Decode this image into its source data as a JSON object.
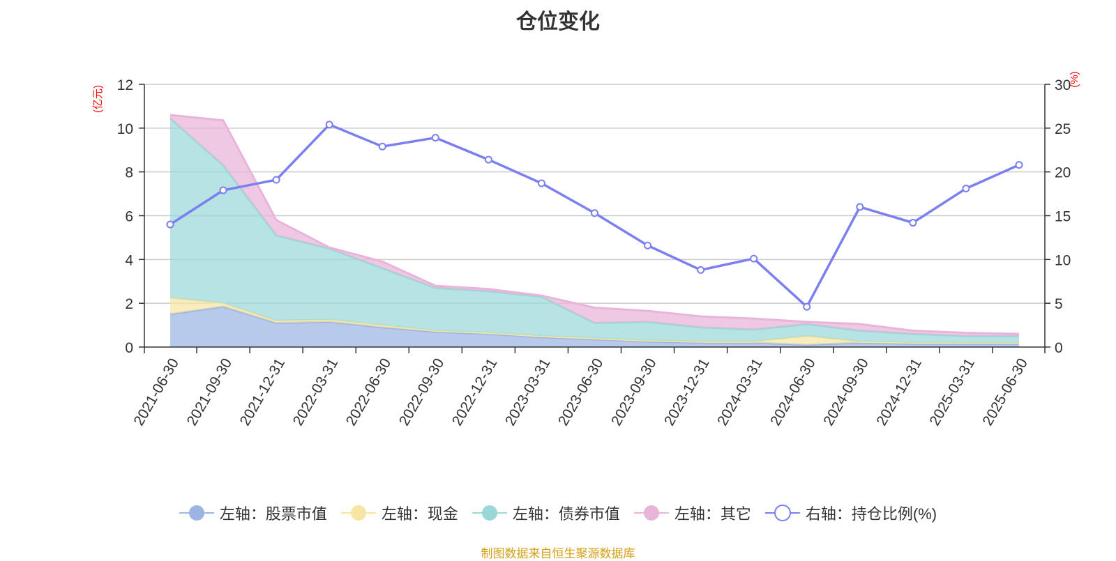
{
  "title": "仓位变化",
  "source_note": "制图数据来自恒生聚源数据库",
  "left_unit": "(亿元)",
  "right_unit": "(%)",
  "chart_data": {
    "type": "area",
    "categories": [
      "2021-06-30",
      "2021-09-30",
      "2021-12-31",
      "2022-03-31",
      "2022-06-30",
      "2022-09-30",
      "2022-12-31",
      "2023-03-31",
      "2023-06-30",
      "2023-09-30",
      "2023-12-31",
      "2024-03-31",
      "2024-06-30",
      "2024-09-30",
      "2024-12-31",
      "2025-03-31",
      "2025-06-30"
    ],
    "left_axis": {
      "ylim": [
        0,
        12
      ],
      "ticks": [
        "0",
        "2",
        "4",
        "6",
        "8",
        "10",
        "12"
      ]
    },
    "right_axis": {
      "ylim": [
        0,
        30
      ],
      "ticks": [
        "0",
        "5",
        "10",
        "15",
        "20",
        "25",
        "30"
      ]
    },
    "stacked": true,
    "grid": true,
    "legend_position": "bottom",
    "series": [
      {
        "name": "左轴：股票市值",
        "axis": "left",
        "color": "#9db5e3",
        "values": [
          1.5,
          1.85,
          1.1,
          1.15,
          0.9,
          0.7,
          0.6,
          0.45,
          0.35,
          0.25,
          0.2,
          0.2,
          0.1,
          0.2,
          0.15,
          0.15,
          0.15
        ]
      },
      {
        "name": "左轴：现金",
        "axis": "left",
        "color": "#f7e5a3",
        "values": [
          0.75,
          0.15,
          0.1,
          0.1,
          0.1,
          0.05,
          0.05,
          0.05,
          0.05,
          0.05,
          0.05,
          0.05,
          0.4,
          0.05,
          0.05,
          0.05,
          0.05
        ]
      },
      {
        "name": "左轴：债券市值",
        "axis": "left",
        "color": "#9ad8d8",
        "values": [
          8.2,
          6.3,
          3.9,
          3.25,
          2.6,
          1.95,
          1.9,
          1.8,
          0.7,
          0.85,
          0.65,
          0.55,
          0.55,
          0.5,
          0.4,
          0.3,
          0.3
        ]
      },
      {
        "name": "左轴：其它",
        "axis": "left",
        "color": "#e9b4da",
        "values": [
          0.15,
          2.05,
          0.7,
          0.05,
          0.3,
          0.1,
          0.1,
          0.05,
          0.7,
          0.5,
          0.5,
          0.5,
          0.1,
          0.3,
          0.15,
          0.15,
          0.1
        ]
      },
      {
        "name": "右轴：持仓比例(%)",
        "axis": "right",
        "color": "#7b7ff0",
        "type": "line",
        "values": [
          14.0,
          17.9,
          19.1,
          25.4,
          22.9,
          23.9,
          21.4,
          18.7,
          15.3,
          11.6,
          8.8,
          10.1,
          4.6,
          16.0,
          14.2,
          18.1,
          20.8
        ]
      }
    ]
  }
}
